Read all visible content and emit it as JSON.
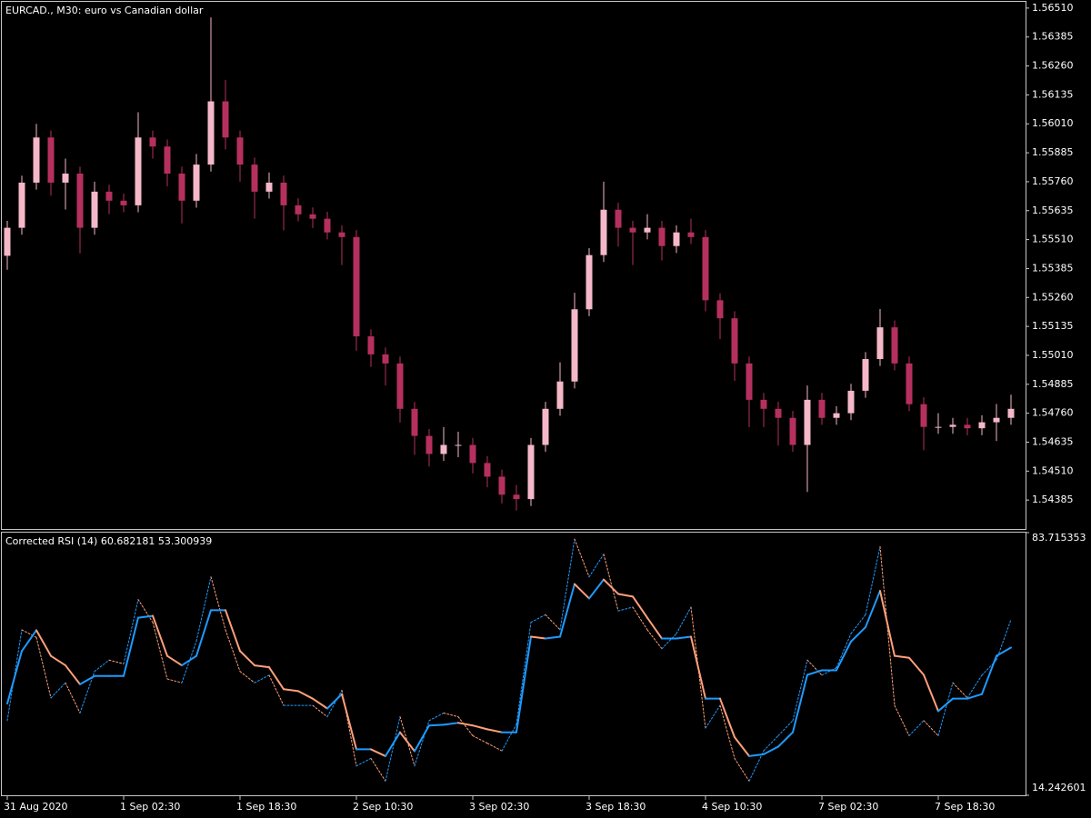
{
  "chart_data": [
    {
      "type": "candlestick",
      "title": "EURCAD., M30:  euro vs Canadian dollar",
      "up_color": "#f4b8c8",
      "down_color": "#b5305e",
      "ylim": [
        1.5426,
        1.56537
      ],
      "yticks": [
        {
          "value": 1.5651,
          "label": "1.56510"
        },
        1.56385,
        {
          "value": 1.5626,
          "label": "1.56260"
        },
        1.56135,
        {
          "value": 1.5601,
          "label": "1.56010"
        },
        1.55885,
        {
          "value": 1.5576,
          "label": "1.55760"
        },
        1.55635,
        {
          "value": 1.5551,
          "label": "1.55510"
        },
        1.55385,
        {
          "value": 1.5526,
          "label": "1.55260"
        },
        1.55135,
        {
          "value": 1.5501,
          "label": "1.55010"
        },
        1.54885,
        {
          "value": 1.5476,
          "label": "1.54760"
        },
        1.54635,
        {
          "value": 1.5451,
          "label": "1.54510"
        },
        1.54385
      ],
      "ohlc": [
        [
          1.5544,
          1.55591,
          1.5538,
          1.55561
        ],
        [
          1.55561,
          1.55786,
          1.55531,
          1.55756
        ],
        [
          1.55756,
          1.5601,
          1.55726,
          1.55951
        ],
        [
          1.55951,
          1.55981,
          1.557,
          1.55756
        ],
        [
          1.55756,
          1.5586,
          1.5564,
          1.55795
        ],
        [
          1.55795,
          1.55825,
          1.5545,
          1.55561
        ],
        [
          1.55561,
          1.5576,
          1.55531,
          1.55717
        ],
        [
          1.55717,
          1.55747,
          1.5562,
          1.55678
        ],
        [
          1.55678,
          1.55708,
          1.55628,
          1.55658
        ],
        [
          1.55658,
          1.5606,
          1.55628,
          1.55951
        ],
        [
          1.55951,
          1.55981,
          1.5586,
          1.55912
        ],
        [
          1.55912,
          1.55942,
          1.5574,
          1.55795
        ],
        [
          1.55795,
          1.55825,
          1.5558,
          1.55678
        ],
        [
          1.55678,
          1.5588,
          1.55648,
          1.55834
        ],
        [
          1.55834,
          1.5647,
          1.55804,
          1.56107
        ],
        [
          1.56107,
          1.562,
          1.559,
          1.55951
        ],
        [
          1.55951,
          1.55981,
          1.5576,
          1.55834
        ],
        [
          1.55834,
          1.55864,
          1.556,
          1.55717
        ],
        [
          1.55717,
          1.558,
          1.55687,
          1.55756
        ],
        [
          1.55756,
          1.55786,
          1.5555,
          1.55658
        ],
        [
          1.55658,
          1.55688,
          1.55589,
          1.55619
        ],
        [
          1.55619,
          1.55649,
          1.5556,
          1.556
        ],
        [
          1.556,
          1.5563,
          1.55511,
          1.55541
        ],
        [
          1.55541,
          1.55571,
          1.554,
          1.55521
        ],
        [
          1.55521,
          1.55551,
          1.5503,
          1.55092
        ],
        [
          1.55092,
          1.55122,
          1.5496,
          1.55014
        ],
        [
          1.55014,
          1.55044,
          1.5488,
          1.54975
        ],
        [
          1.54975,
          1.55005,
          1.5472,
          1.54779
        ],
        [
          1.54779,
          1.54809,
          1.5458,
          1.54662
        ],
        [
          1.54662,
          1.54692,
          1.5453,
          1.54584
        ],
        [
          1.54584,
          1.547,
          1.54554,
          1.54623
        ],
        [
          1.54623,
          1.5468,
          1.5457,
          1.54623
        ],
        [
          1.54623,
          1.54653,
          1.545,
          1.54545
        ],
        [
          1.54545,
          1.54575,
          1.5444,
          1.54486
        ],
        [
          1.54486,
          1.54516,
          1.5437,
          1.54408
        ],
        [
          1.54408,
          1.5445,
          1.5434,
          1.54389
        ],
        [
          1.54389,
          1.54653,
          1.54359,
          1.54623
        ],
        [
          1.54623,
          1.54809,
          1.54593,
          1.54779
        ],
        [
          1.54779,
          1.5498,
          1.54749,
          1.54897
        ],
        [
          1.54897,
          1.5528,
          1.54867,
          1.55209
        ],
        [
          1.55209,
          1.55473,
          1.55179,
          1.55443
        ],
        [
          1.55443,
          1.5576,
          1.55413,
          1.55639
        ],
        [
          1.55639,
          1.55669,
          1.5548,
          1.55561
        ],
        [
          1.55561,
          1.55591,
          1.554,
          1.55541
        ],
        [
          1.55541,
          1.5562,
          1.55511,
          1.55561
        ],
        [
          1.55561,
          1.55591,
          1.5542,
          1.55482
        ],
        [
          1.55482,
          1.55571,
          1.55452,
          1.55541
        ],
        [
          1.55541,
          1.556,
          1.55491,
          1.55521
        ],
        [
          1.55521,
          1.55551,
          1.552,
          1.55248
        ],
        [
          1.55248,
          1.55278,
          1.5508,
          1.5517
        ],
        [
          1.5517,
          1.552,
          1.549,
          1.54975
        ],
        [
          1.54975,
          1.55005,
          1.547,
          1.54818
        ],
        [
          1.54818,
          1.54848,
          1.547,
          1.54779
        ],
        [
          1.54779,
          1.54809,
          1.5462,
          1.5474
        ],
        [
          1.5474,
          1.5477,
          1.54593,
          1.54623
        ],
        [
          1.54623,
          1.5488,
          1.5442,
          1.54818
        ],
        [
          1.54818,
          1.54848,
          1.5471,
          1.5474
        ],
        [
          1.5474,
          1.5479,
          1.5471,
          1.5476
        ],
        [
          1.5476,
          1.54887,
          1.5473,
          1.54857
        ],
        [
          1.54857,
          1.55024,
          1.54827,
          1.54994
        ],
        [
          1.54994,
          1.5521,
          1.54964,
          1.55131
        ],
        [
          1.55131,
          1.55161,
          1.54945,
          1.54975
        ],
        [
          1.54975,
          1.55005,
          1.54769,
          1.54799
        ],
        [
          1.54799,
          1.54829,
          1.546,
          1.54701
        ],
        [
          1.54701,
          1.5476,
          1.54671,
          1.54701
        ],
        [
          1.54701,
          1.5474,
          1.54671,
          1.5471
        ],
        [
          1.5471,
          1.5474,
          1.54665,
          1.54695
        ],
        [
          1.54695,
          1.54751,
          1.54665,
          1.54721
        ],
        [
          1.54721,
          1.548,
          1.5464,
          1.5474
        ],
        [
          1.5474,
          1.5484,
          1.5471,
          1.54779
        ]
      ]
    },
    {
      "type": "line",
      "title": "Corrected RSI (14) 60.682181 53.300939",
      "ylim": [
        14.242601,
        83.715353
      ],
      "yticks": [
        14.242601,
        83.715353
      ],
      "categories": [
        "31 Aug 2020",
        null,
        null,
        null,
        null,
        null,
        null,
        null,
        "1 Sep 02:30",
        null,
        null,
        null,
        null,
        null,
        null,
        null,
        "1 Sep 18:30",
        null,
        null,
        null,
        null,
        null,
        null,
        null,
        "2 Sep 10:30",
        null,
        null,
        null,
        null,
        null,
        null,
        null,
        "3 Sep 02:30",
        null,
        null,
        null,
        null,
        null,
        null,
        null,
        "3 Sep 18:30",
        null,
        null,
        null,
        null,
        null,
        null,
        null,
        "4 Sep 10:30",
        null,
        null,
        null,
        null,
        null,
        null,
        null,
        "7 Sep 02:30",
        null,
        null,
        null,
        null,
        null,
        null,
        null,
        "7 Sep 18:30",
        null,
        null,
        null,
        null,
        null
      ],
      "series": [
        {
          "style": "dashed",
          "up_color": "#1e9bff",
          "down_color": "#ffa07a",
          "values": [
            34,
            58,
            56,
            40,
            44,
            36,
            47,
            50,
            49,
            66,
            60,
            45,
            44,
            55,
            72,
            58,
            47,
            44,
            46,
            38,
            38,
            38,
            35,
            42,
            22,
            24,
            18,
            35,
            22,
            34,
            36,
            35,
            30,
            28,
            26,
            33,
            60,
            62,
            58,
            82,
            72,
            78,
            63,
            64,
            58,
            53,
            57,
            64,
            32,
            38,
            24,
            18,
            26,
            30,
            34,
            50,
            46,
            48,
            57,
            62,
            80,
            38,
            30,
            34,
            30,
            44,
            40,
            46,
            50,
            60.7
          ]
        },
        {
          "style": "solid",
          "up_color": "#1e9bff",
          "down_color": "#ffa07a",
          "values": [
            38.5,
            52.4,
            57.9,
            51.1,
            48.6,
            43.6,
            45.8,
            45.8,
            45.8,
            61.2,
            61.7,
            51.1,
            48.6,
            51.1,
            63.2,
            63.2,
            52.4,
            48.6,
            48.1,
            42.3,
            41.8,
            39.8,
            37.2,
            41.0,
            26.4,
            26.4,
            24.6,
            30.9,
            25.9,
            32.7,
            32.9,
            33.4,
            32.7,
            31.7,
            30.9,
            30.9,
            56.2,
            55.7,
            56.2,
            70.1,
            66.3,
            71.3,
            67.5,
            66.8,
            61.2,
            55.7,
            55.7,
            56.2,
            39.8,
            39.8,
            29.6,
            24.6,
            25.1,
            27.1,
            30.9,
            46.1,
            47.3,
            47.3,
            54.9,
            58.7,
            68.3,
            51.1,
            50.6,
            46.1,
            36.5,
            39.8,
            39.8,
            41.0,
            51.1,
            53.3
          ]
        }
      ]
    }
  ]
}
